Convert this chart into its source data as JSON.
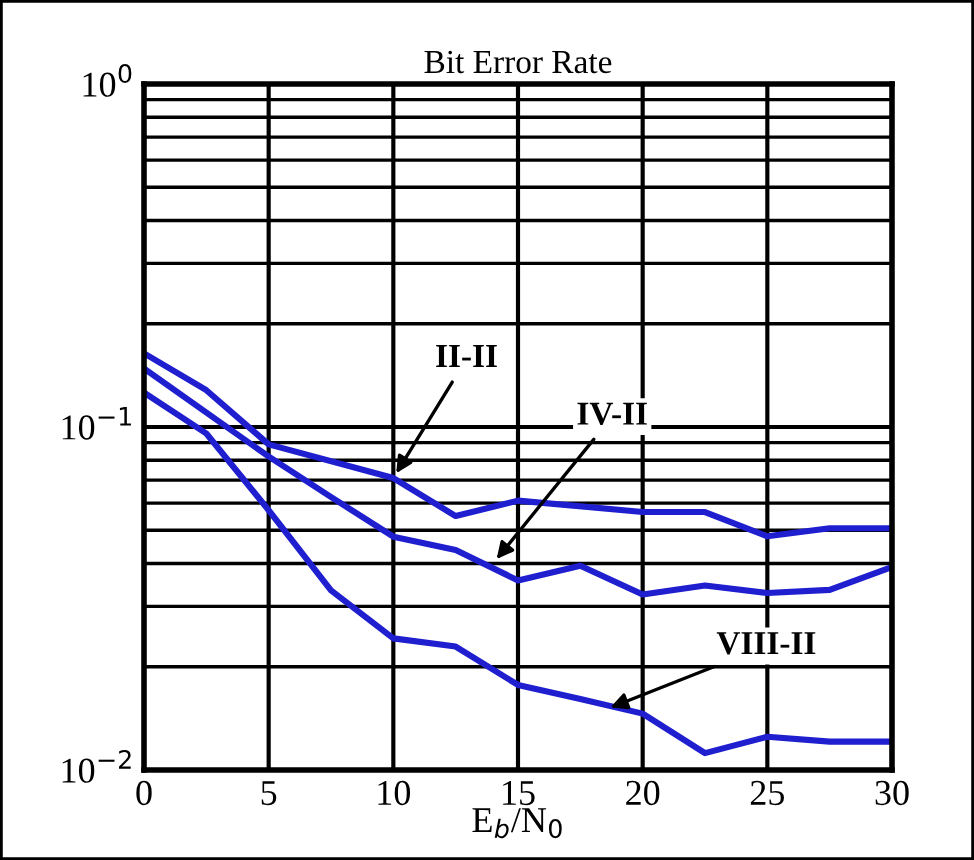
{
  "chart_data": {
    "type": "line",
    "title": "Bit Error Rate",
    "xlabel": "E$_{b}$/N$_{0}$",
    "log": "y",
    "grid": true,
    "marker": "none",
    "line_style": "solid",
    "xlim": [
      0,
      30
    ],
    "xticks": [
      0,
      5,
      10,
      15,
      20,
      25,
      30
    ],
    "ylim": [
      0.01,
      1
    ],
    "yticks": [
      {
        "value": 0.01,
        "label": "10$^{−2}$"
      },
      {
        "value": 0.1,
        "label": "10$^{−1}$"
      },
      {
        "value": 1,
        "label": "10$^{0}$"
      }
    ],
    "series": [
      {
        "color": "#1f1fd0",
        "x": [
          0,
          2.5,
          5,
          10,
          12.5,
          15,
          20,
          22.5,
          25,
          27.5,
          30
        ],
        "values": [
          0.164,
          0.128,
          0.089,
          0.071,
          0.055,
          0.061,
          0.0565,
          0.0565,
          0.048,
          0.0507,
          0.0507
        ]
      },
      {
        "color": "#1f1fd0",
        "x": [
          0,
          5,
          7.5,
          10,
          12.5,
          15,
          17.5,
          20,
          22.5,
          25,
          27.5,
          30
        ],
        "values": [
          0.148,
          0.082,
          0.0625,
          0.0479,
          0.0438,
          0.0357,
          0.0394,
          0.0325,
          0.0345,
          0.0328,
          0.0335,
          0.0391
        ]
      },
      {
        "color": "#1f1fd0",
        "x": [
          0,
          2.5,
          5,
          7.5,
          10,
          12.5,
          15,
          17.5,
          20,
          22.5,
          25,
          27.5,
          30
        ],
        "values": [
          0.126,
          0.0957,
          0.0572,
          0.0334,
          0.0242,
          0.0229,
          0.0177,
          0.0161,
          0.0146,
          0.0112,
          0.0125,
          0.0121,
          0.0121
        ]
      }
    ],
    "annotations": [
      {
        "text": "II-II",
        "x": 10,
        "y": 0.071
      },
      {
        "text": "IV-II",
        "x": 14,
        "y": 0.04
      },
      {
        "text": "VIII-II",
        "x": 18.5,
        "y": 0.015
      }
    ]
  }
}
